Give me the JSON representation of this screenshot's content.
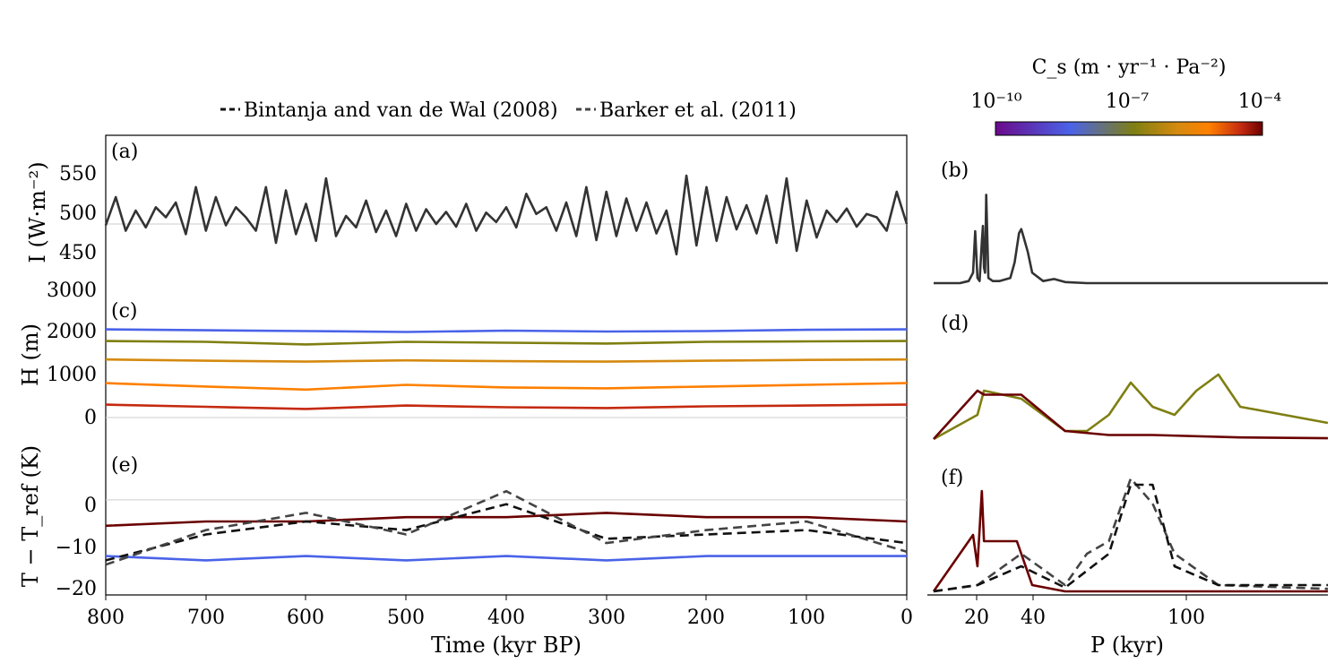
{
  "legend": {
    "items": [
      {
        "label": "Bintanja and van de Wal (2008)",
        "color": "#111111"
      },
      {
        "label": "Barker et al. (2011)",
        "color": "#444444"
      }
    ]
  },
  "colorbar": {
    "label": "C_s (m · yr⁻¹ · Pa⁻²)",
    "ticks": [
      "10⁻¹⁰",
      "10⁻⁷",
      "10⁻⁴"
    ],
    "colormap": [
      "#6a0a8a",
      "#4a63e8",
      "#7f7f12",
      "#d48a10",
      "#ff8000",
      "#c42a10",
      "#6a0000"
    ]
  },
  "panel_labels": {
    "a": "(a)",
    "b": "(b)",
    "c": "(c)",
    "d": "(d)",
    "e": "(e)",
    "f": "(f)"
  },
  "axes": {
    "time_xlabel": "Time (kyr BP)",
    "period_xlabel": "P (kyr)",
    "ylabel_a": "I (W·m⁻²)",
    "ylabel_c": "H (m)",
    "ylabel_e": "T − T_ref (K)",
    "time_ticks": [
      "800",
      "700",
      "600",
      "500",
      "400",
      "300",
      "200",
      "100",
      "0"
    ],
    "period_ticks": [
      "20",
      "40",
      "100"
    ],
    "a_ticks": [
      "550",
      "500",
      "450"
    ],
    "c_ticks": [
      "3000",
      "2000",
      "1000",
      "0"
    ],
    "e_ticks": [
      "0",
      "−10",
      "−20"
    ]
  },
  "chart_data": [
    {
      "id": "a",
      "type": "line",
      "x_range": [
        800,
        0
      ],
      "ylim": [
        400,
        600
      ],
      "ref_line": 480,
      "series": [
        {
          "color": "#333333",
          "x": [
            800,
            790,
            780,
            770,
            760,
            750,
            740,
            730,
            720,
            710,
            700,
            690,
            680,
            670,
            660,
            650,
            640,
            630,
            620,
            610,
            600,
            590,
            580,
            570,
            560,
            550,
            540,
            530,
            520,
            510,
            500,
            490,
            480,
            470,
            460,
            450,
            440,
            430,
            420,
            410,
            400,
            390,
            380,
            370,
            360,
            350,
            340,
            330,
            320,
            310,
            300,
            290,
            280,
            270,
            260,
            250,
            240,
            230,
            220,
            210,
            200,
            190,
            180,
            170,
            160,
            150,
            140,
            130,
            120,
            110,
            100,
            90,
            80,
            70,
            60,
            50,
            40,
            30,
            20,
            10,
            0
          ],
          "y": [
            478,
            520,
            470,
            500,
            475,
            505,
            490,
            512,
            465,
            535,
            470,
            520,
            478,
            505,
            490,
            470,
            535,
            452,
            530,
            465,
            510,
            455,
            548,
            462,
            492,
            475,
            515,
            468,
            500,
            462,
            510,
            470,
            502,
            480,
            498,
            476,
            510,
            470,
            497,
            483,
            505,
            475,
            525,
            495,
            505,
            470,
            512,
            462,
            535,
            456,
            528,
            462,
            518,
            470,
            512,
            466,
            500,
            435,
            552,
            448,
            535,
            455,
            520,
            472,
            508,
            466,
            522,
            452,
            548,
            440,
            515,
            460,
            500,
            483,
            503,
            476,
            495,
            490,
            470,
            528,
            480
          ]
        }
      ]
    },
    {
      "id": "b",
      "type": "line",
      "x_range": [
        0,
        180
      ],
      "ylim": [
        0,
        1
      ],
      "series": [
        {
          "color": "#333333",
          "x": [
            0,
            12,
            14,
            16,
            18,
            19,
            20,
            21,
            22,
            22.5,
            23,
            23.5,
            24,
            25,
            27,
            30,
            35,
            37,
            39,
            40,
            41,
            43,
            45,
            50,
            55,
            60,
            70,
            80,
            100,
            130,
            160,
            180
          ],
          "y": [
            0,
            0,
            0.01,
            0.02,
            0.1,
            0.5,
            0.05,
            0.02,
            0.4,
            0.55,
            0.15,
            0.1,
            0.85,
            0.05,
            0.02,
            0.02,
            0.05,
            0.2,
            0.48,
            0.52,
            0.45,
            0.3,
            0.1,
            0.02,
            0.04,
            0.01,
            0,
            0,
            0,
            0,
            0,
            0
          ]
        }
      ]
    },
    {
      "id": "c",
      "type": "line",
      "x_range": [
        800,
        0
      ],
      "ylim": [
        -500,
        3000
      ],
      "ref_line": 0,
      "series": [
        {
          "color": "#4a63e8",
          "x": [
            800,
            700,
            600,
            500,
            400,
            300,
            200,
            100,
            0
          ],
          "y": [
            2050,
            2030,
            2010,
            1990,
            2020,
            2000,
            2010,
            2040,
            2050
          ]
        },
        {
          "color": "#7f7f12",
          "x": [
            800,
            700,
            600,
            500,
            400,
            300,
            200,
            100,
            0
          ],
          "y": [
            1780,
            1760,
            1700,
            1760,
            1740,
            1720,
            1760,
            1770,
            1780
          ]
        },
        {
          "color": "#d48a10",
          "x": [
            800,
            700,
            600,
            500,
            400,
            300,
            200,
            100,
            0
          ],
          "y": [
            1350,
            1320,
            1300,
            1330,
            1310,
            1300,
            1320,
            1340,
            1350
          ]
        },
        {
          "color": "#ff8000",
          "x": [
            800,
            700,
            600,
            500,
            400,
            300,
            200,
            100,
            0
          ],
          "y": [
            800,
            720,
            650,
            760,
            700,
            680,
            720,
            760,
            800
          ]
        },
        {
          "color": "#c42a10",
          "x": [
            800,
            700,
            600,
            500,
            400,
            300,
            200,
            100,
            0
          ],
          "y": [
            300,
            250,
            200,
            280,
            240,
            220,
            260,
            280,
            300
          ]
        }
      ]
    },
    {
      "id": "d",
      "type": "line",
      "x_range": [
        0,
        180
      ],
      "ylim": [
        0,
        1
      ],
      "series": [
        {
          "color": "#7f7f12",
          "x": [
            0,
            20,
            23,
            40,
            60,
            70,
            80,
            90,
            100,
            110,
            120,
            130,
            140,
            180
          ],
          "y": [
            0,
            0.3,
            0.6,
            0.5,
            0.1,
            0.1,
            0.3,
            0.7,
            0.4,
            0.3,
            0.6,
            0.8,
            0.4,
            0.2
          ]
        },
        {
          "color": "#6a0000",
          "x": [
            0,
            20,
            23,
            40,
            60,
            80,
            100,
            140,
            180
          ],
          "y": [
            0,
            0.6,
            0.55,
            0.55,
            0.1,
            0.05,
            0.05,
            0.02,
            0.01
          ]
        }
      ]
    },
    {
      "id": "e",
      "type": "line",
      "x_range": [
        800,
        0
      ],
      "ylim": [
        -22,
        12
      ],
      "ref_line": 0,
      "series": [
        {
          "color": "#6a0000",
          "x": [
            800,
            700,
            600,
            500,
            400,
            300,
            200,
            100,
            0
          ],
          "y": [
            -6,
            -5,
            -5,
            -4,
            -4,
            -3,
            -4,
            -4,
            -5
          ]
        },
        {
          "color": "#4a63e8",
          "x": [
            800,
            700,
            600,
            500,
            400,
            300,
            200,
            100,
            0
          ],
          "y": [
            -13,
            -14,
            -13,
            -14,
            -13,
            -14,
            -13,
            -13,
            -13
          ]
        },
        {
          "name": "Bintanja and van de Wal (2008)",
          "color": "#111111",
          "x": [
            800,
            700,
            600,
            500,
            400,
            300,
            200,
            100,
            0
          ],
          "y": [
            -14,
            -8,
            -5,
            -7,
            -1,
            -9,
            -8,
            -7,
            -10
          ]
        },
        {
          "name": "Barker et al. (2011)",
          "color": "#444444",
          "x": [
            800,
            700,
            600,
            500,
            400,
            300,
            200,
            100,
            0
          ],
          "y": [
            -15,
            -7,
            -3,
            -8,
            2,
            -10,
            -7,
            -5,
            -12
          ]
        }
      ]
    },
    {
      "id": "f",
      "type": "line",
      "x_range": [
        0,
        180
      ],
      "ylim": [
        0,
        1
      ],
      "series": [
        {
          "color": "#6a0000",
          "x": [
            0,
            18,
            20,
            22,
            23,
            38,
            40,
            45,
            60,
            180
          ],
          "y": [
            0,
            0.45,
            0.2,
            0.8,
            0.4,
            0.4,
            0.3,
            0.05,
            0,
            0
          ]
        },
        {
          "name": "Barker et al. (2011)",
          "color": "#444444",
          "x": [
            0,
            20,
            40,
            60,
            70,
            80,
            90,
            100,
            110,
            130,
            180
          ],
          "y": [
            0,
            0.05,
            0.3,
            0.05,
            0.3,
            0.4,
            0.9,
            0.7,
            0.3,
            0.05,
            0.02
          ]
        },
        {
          "name": "Bintanja and van de Wal (2008)",
          "color": "#111111",
          "x": [
            0,
            20,
            40,
            60,
            80,
            90,
            100,
            110,
            130,
            180
          ],
          "y": [
            0,
            0.05,
            0.2,
            0.03,
            0.3,
            0.85,
            0.85,
            0.2,
            0.05,
            0.05
          ]
        }
      ]
    }
  ]
}
